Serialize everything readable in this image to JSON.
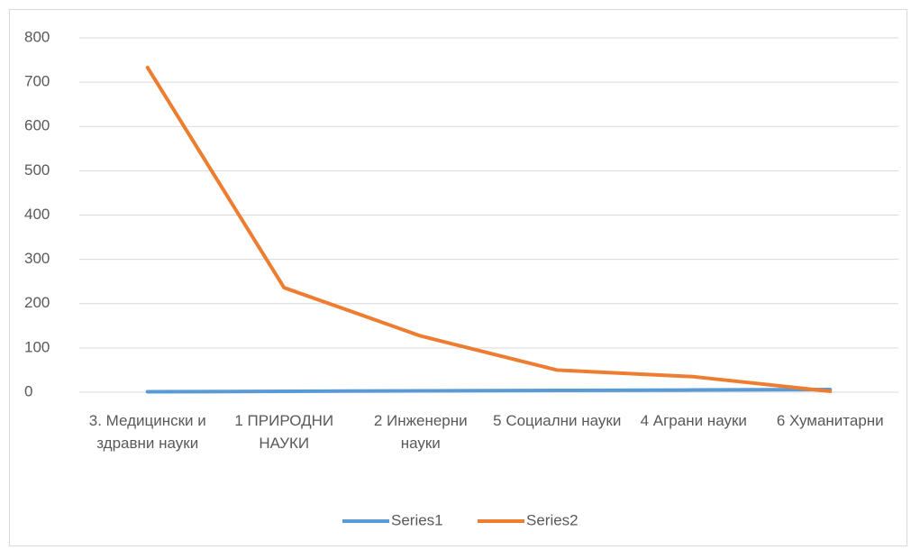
{
  "chart_data": {
    "type": "line",
    "categories": [
      "3. Медицински и здравни науки",
      "1 ПРИРОДНИ НАУКИ",
      "2 Инженерни науки",
      "5 Социални науки",
      "4 Аграни науки",
      "6 Хуманитарни"
    ],
    "series": [
      {
        "name": "Series1",
        "color": "#5b9bd5",
        "values": [
          1,
          2,
          3,
          4,
          5,
          6
        ]
      },
      {
        "name": "Series2",
        "color": "#ed7d31",
        "values": [
          733,
          236,
          127,
          50,
          35,
          2
        ]
      }
    ],
    "ylim": [
      0,
      800
    ],
    "yticks": [
      0,
      100,
      200,
      300,
      400,
      500,
      600,
      700,
      800
    ],
    "grid": true,
    "legend": "bottom"
  }
}
